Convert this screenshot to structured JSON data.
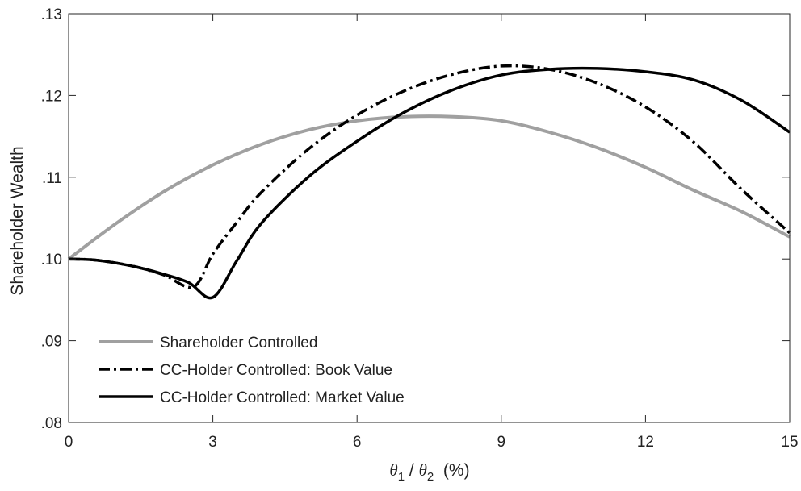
{
  "chart_data": {
    "type": "line",
    "title": "",
    "xlabel": "θ1 / θ2  (%)",
    "ylabel": "Shareholder Wealth",
    "xlim": [
      0,
      15
    ],
    "ylim": [
      0.08,
      0.13
    ],
    "xticks": [
      0,
      3,
      6,
      9,
      12,
      15
    ],
    "xtick_labels": [
      "0",
      "3",
      "6",
      "9",
      "12",
      "15"
    ],
    "yticks": [
      0.08,
      0.09,
      0.1,
      0.11,
      0.12,
      0.13
    ],
    "ytick_labels": [
      ".08",
      ".09",
      ".10",
      ".11",
      ".12",
      ".13"
    ],
    "grid": false,
    "legend_position": "bottom-left",
    "series": [
      {
        "name": "Shareholder Controlled",
        "color": "#a0a0a0",
        "dash": "solid",
        "x": [
          0,
          1,
          2,
          3,
          4,
          5,
          6,
          7,
          8,
          9,
          10,
          11,
          12,
          13,
          14,
          15
        ],
        "y": [
          0.1,
          0.1044,
          0.1083,
          0.1115,
          0.114,
          0.1158,
          0.1169,
          0.1174,
          0.1174,
          0.1169,
          0.1155,
          0.1136,
          0.1112,
          0.1084,
          0.1058,
          0.1027
        ]
      },
      {
        "name": "CC-Holder Controlled: Book Value",
        "color": "#000000",
        "dash": "dashdot",
        "x": [
          0,
          0.5,
          1,
          1.5,
          2,
          2.6,
          3,
          3.5,
          4,
          5,
          6,
          7,
          8,
          9,
          10,
          11,
          12,
          13,
          14,
          15
        ],
        "y": [
          0.1,
          0.0999,
          0.0995,
          0.0989,
          0.098,
          0.0966,
          0.1006,
          0.1045,
          0.1081,
          0.1135,
          0.1176,
          0.1206,
          0.1226,
          0.1236,
          0.1232,
          0.1215,
          0.1186,
          0.1143,
          0.1085,
          0.1032
        ]
      },
      {
        "name": "CC-Holder Controlled: Market Value",
        "color": "#000000",
        "dash": "solid",
        "x": [
          0,
          0.5,
          1,
          1.5,
          2,
          2.5,
          3,
          3.5,
          4,
          5,
          6,
          7,
          8,
          9,
          10,
          11,
          12,
          13,
          14,
          15
        ],
        "y": [
          0.1,
          0.0999,
          0.0995,
          0.0989,
          0.0981,
          0.0971,
          0.0953,
          0.0998,
          0.1043,
          0.1101,
          0.1144,
          0.118,
          0.1207,
          0.1225,
          0.1232,
          0.1233,
          0.1229,
          0.1219,
          0.1194,
          0.1155
        ]
      }
    ]
  }
}
